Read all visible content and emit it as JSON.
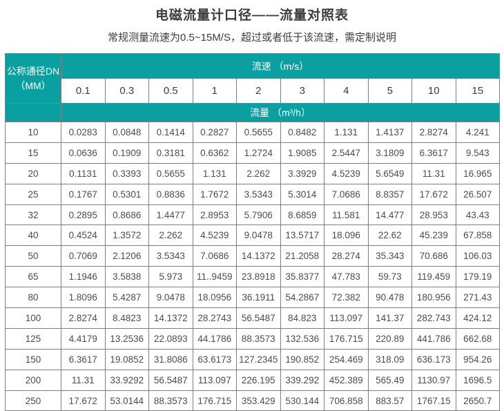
{
  "page": {
    "title": "电磁流量计口径——流量对照表",
    "subtitle": "常规测量流速为0.5~15M/S，超过或者低于该流速，需定制说明"
  },
  "colors": {
    "header_teal": "#0a9fa0",
    "border": "#7e7e7e",
    "outer_border": "#5f5f5f",
    "header_text": "#ffffff",
    "body_text": "#4c4c4c",
    "title_text": "#3c3c3c"
  },
  "table": {
    "corner_header_line1": "公称通径DN",
    "corner_header_line2": "（MM）",
    "velocity_header": "流速 （m/s）",
    "flow_header": "流量 （m³/h）",
    "velocities": [
      "0.1",
      "0.3",
      "0.5",
      "1",
      "2",
      "3",
      "4",
      "5",
      "10",
      "15"
    ],
    "rows": [
      {
        "dn": "10",
        "values": [
          "0.0283",
          "0.0848",
          "0.1414",
          "0.2827",
          "0.5655",
          "0.8482",
          "1.131",
          "1.4137",
          "2.8274",
          "4.241"
        ]
      },
      {
        "dn": "15",
        "values": [
          "0.0636",
          "0.1909",
          "0.3181",
          "0.6362",
          "1.2724",
          "1.9085",
          "2.5447",
          "3.1809",
          "6.3617",
          "9.543"
        ]
      },
      {
        "dn": "20",
        "values": [
          "0.1131",
          "0.3393",
          "0.5655",
          "1.131",
          "2.262",
          "3.3929",
          "4.5239",
          "5.6549",
          "11.31",
          "16.965"
        ]
      },
      {
        "dn": "25",
        "values": [
          "0.1767",
          "0.5301",
          "0.8836",
          "1.7672",
          "3.5343",
          "5.3014",
          "7.0686",
          "8.8357",
          "17.672",
          "26.507"
        ]
      },
      {
        "dn": "32",
        "values": [
          "0.2895",
          "0.8686",
          "1.4477",
          "2.8953",
          "5.7906",
          "8.6859",
          "11.581",
          "14.477",
          "28.953",
          "43.43"
        ]
      },
      {
        "dn": "40",
        "values": [
          "0.4524",
          "1.3572",
          "2.262",
          "4.5239",
          "9.0478",
          "13.5717",
          "18.096",
          "22.62",
          "45.239",
          "67.858"
        ]
      },
      {
        "dn": "50",
        "values": [
          "0.7069",
          "2.1206",
          "3.5343",
          "7.0686",
          "14.1372",
          "21.2058",
          "28.274",
          "35.343",
          "70.686",
          "106.03"
        ]
      },
      {
        "dn": "65",
        "values": [
          "1.1946",
          "3.5838",
          "5.973",
          "11..9459",
          "23.8918",
          "35.8377",
          "47.783",
          "59.73",
          "119.459",
          "179.19"
        ]
      },
      {
        "dn": "80",
        "values": [
          "1.8096",
          "5.4287",
          "9.0478",
          "18.0956",
          "36.1911",
          "54.2867",
          "72.382",
          "90.478",
          "180.956",
          "271.43"
        ]
      },
      {
        "dn": "100",
        "values": [
          "2.8274",
          "8.4823",
          "14.1372",
          "28.2743",
          "56.5487",
          "84.823",
          "113.097",
          "141.37",
          "282.743",
          "424.12"
        ]
      },
      {
        "dn": "125",
        "values": [
          "4.4179",
          "13.2536",
          "22.0893",
          "44.1786",
          "88.3573",
          "132.536",
          "176.715",
          "220.89",
          "441.786",
          "662.68"
        ]
      },
      {
        "dn": "150",
        "values": [
          "6.3617",
          "19.0852",
          "31.8086",
          "63.6173",
          "127.2345",
          "190.852",
          "254.469",
          "318.09",
          "636.173",
          "954.26"
        ]
      },
      {
        "dn": "200",
        "values": [
          "11.31",
          "33.9292",
          "56.5487",
          "113.097",
          "226.195",
          "339.292",
          "452.389",
          "565.49",
          "1130.97",
          "1696.5"
        ]
      },
      {
        "dn": "250",
        "values": [
          "17.672",
          "53.0144",
          "88.3573",
          "176.715",
          "353.429",
          "530.144",
          "706.858",
          "883.57",
          "1767.15",
          "2650.7"
        ]
      }
    ]
  }
}
